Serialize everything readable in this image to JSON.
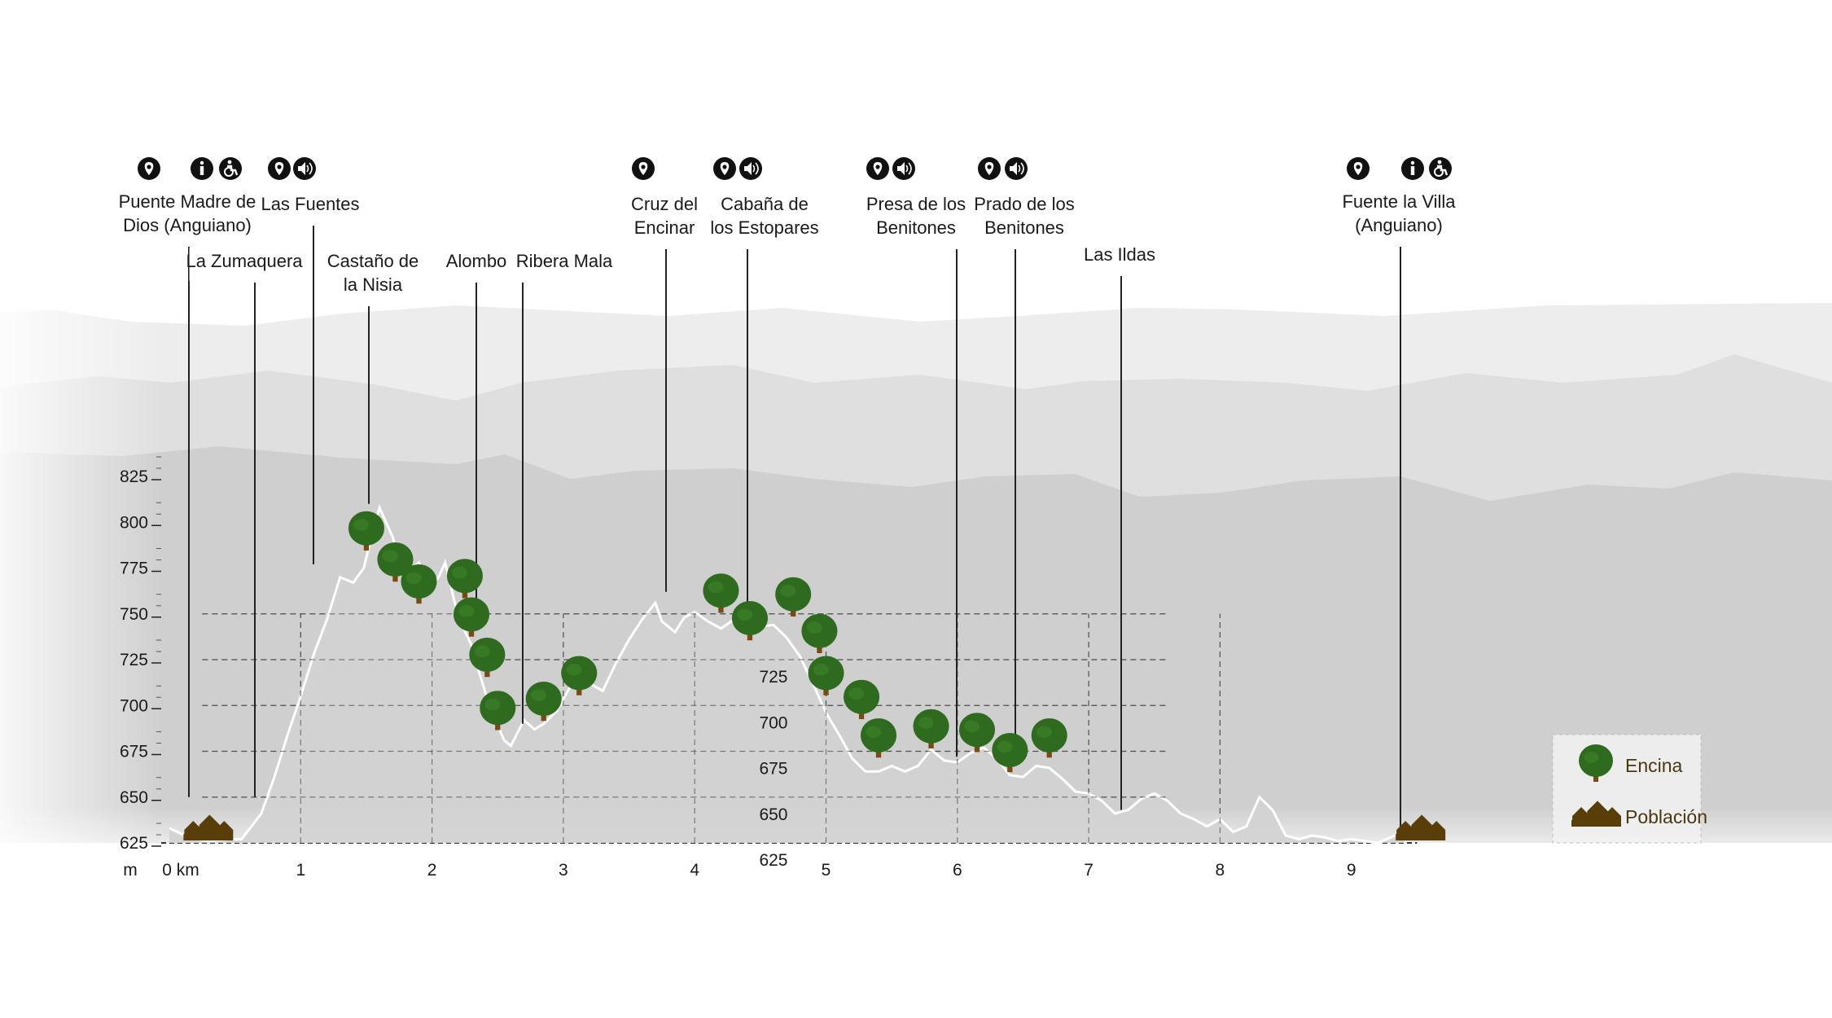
{
  "chart_data": {
    "type": "area",
    "title": "",
    "xlabel": "",
    "ylabel": "",
    "y_unit_label": "m",
    "x_start_label": "0 km",
    "xlim": [
      0,
      9.5
    ],
    "ylim": [
      625,
      825
    ],
    "y_ticks": [
      "625",
      "650",
      "675",
      "700",
      "725",
      "750",
      "775",
      "800",
      "825"
    ],
    "x_ticks": [
      "0 km",
      "1",
      "2",
      "3",
      "4",
      "5",
      "6",
      "7",
      "8",
      "9"
    ],
    "inner_labels": [
      "725",
      "700",
      "675",
      "650",
      "625"
    ],
    "grid": "dashed",
    "profile": {
      "x": [
        0,
        0.15,
        0.3,
        0.45,
        0.55,
        0.7,
        0.8,
        0.9,
        1.0,
        1.1,
        1.2,
        1.3,
        1.4,
        1.48,
        1.55,
        1.6,
        1.7,
        1.78,
        1.85,
        1.9,
        1.95,
        2.0,
        2.05,
        2.1,
        2.2,
        2.3,
        2.35,
        2.45,
        2.55,
        2.6,
        2.7,
        2.78,
        2.85,
        2.95,
        3.05,
        3.15,
        3.2,
        3.3,
        3.4,
        3.5,
        3.6,
        3.7,
        3.75,
        3.85,
        3.92,
        4.0,
        4.1,
        4.2,
        4.3,
        4.4,
        4.5,
        4.6,
        4.7,
        4.8,
        4.9,
        5.0,
        5.1,
        5.2,
        5.3,
        5.4,
        5.5,
        5.6,
        5.7,
        5.8,
        5.9,
        6.0,
        6.1,
        6.2,
        6.3,
        6.4,
        6.5,
        6.6,
        6.7,
        6.8,
        6.9,
        7.0,
        7.1,
        7.2,
        7.3,
        7.4,
        7.5,
        7.6,
        7.7,
        7.8,
        7.9,
        8.0,
        8.1,
        8.2,
        8.3,
        8.4,
        8.5,
        8.6,
        8.7,
        8.8,
        8.9,
        9.0,
        9.2,
        9.4
      ],
      "y": [
        633,
        628,
        626,
        627,
        627,
        641,
        661,
        684,
        705,
        728,
        747,
        770,
        767,
        775,
        795,
        808,
        792,
        772,
        775,
        778,
        770,
        766,
        770,
        778,
        748,
        733,
        720,
        697,
        681,
        678,
        692,
        687,
        690,
        697,
        710,
        719,
        712,
        708,
        723,
        736,
        747,
        756,
        746,
        740,
        748,
        751,
        746,
        742,
        747,
        747,
        743,
        744,
        737,
        727,
        712,
        696,
        684,
        671,
        664,
        664,
        667,
        664,
        667,
        676,
        670,
        669,
        674,
        677,
        671,
        662,
        661,
        667,
        666,
        660,
        653,
        652,
        648,
        641,
        643,
        649,
        652,
        648,
        641,
        638,
        634,
        638,
        631,
        634,
        650,
        643,
        629,
        627,
        629,
        628,
        626,
        627,
        625,
        631
      ]
    },
    "annotations": [
      {
        "label": "Puente Madre de\nDios (Anguiano)",
        "x": 0.03,
        "y": 650,
        "icons": [
          "pin-icon"
        ],
        "tag_icons": [
          "info-icon",
          "accessibility-icon"
        ]
      },
      {
        "label": "La Zumaquera",
        "x": 0.55,
        "y": 650,
        "icons": []
      },
      {
        "label": "Las Fuentes",
        "x": 1.0,
        "y": 777,
        "icons": [
          "pin-icon",
          "audio-icon"
        ]
      },
      {
        "label": "Castaño de\nla Nisia",
        "x": 1.58,
        "y": 810,
        "icons": []
      },
      {
        "label": "Alombo",
        "x": 2.4,
        "y": 756,
        "icons": []
      },
      {
        "label": "Ribera Mala",
        "x": 2.75,
        "y": 690,
        "icons": []
      },
      {
        "label": "Cruz del\nEncinar",
        "x": 3.75,
        "y": 762,
        "icons": [
          "pin-icon"
        ]
      },
      {
        "label": "Cabaña de\nlos Estopares",
        "x": 4.5,
        "y": 756,
        "icons": [
          "pin-icon",
          "audio-icon"
        ]
      },
      {
        "label": "Presa de los\nBenitones",
        "x": 6.05,
        "y": 672,
        "icons": [
          "pin-icon",
          "audio-icon"
        ]
      },
      {
        "label": "Prado de los\nBenitones",
        "x": 6.5,
        "y": 678,
        "icons": [
          "pin-icon",
          "audio-icon"
        ]
      },
      {
        "label": "Las Ildas",
        "x": 7.3,
        "y": 643,
        "icons": []
      },
      {
        "label": "Fuente la Villa\n(Anguiano)",
        "x": 9.45,
        "y": 634,
        "icons": [
          "pin-icon"
        ],
        "tag_icons": [
          "info-icon",
          "accessibility-icon"
        ]
      }
    ],
    "trees": [
      {
        "x": 1.5,
        "y": 789
      },
      {
        "x": 1.72,
        "y": 772
      },
      {
        "x": 1.9,
        "y": 760
      },
      {
        "x": 2.25,
        "y": 763
      },
      {
        "x": 2.3,
        "y": 742
      },
      {
        "x": 2.42,
        "y": 720
      },
      {
        "x": 2.5,
        "y": 691
      },
      {
        "x": 2.85,
        "y": 696
      },
      {
        "x": 3.12,
        "y": 710
      },
      {
        "x": 4.2,
        "y": 755
      },
      {
        "x": 4.42,
        "y": 740
      },
      {
        "x": 4.75,
        "y": 753
      },
      {
        "x": 4.95,
        "y": 733
      },
      {
        "x": 5.0,
        "y": 710
      },
      {
        "x": 5.27,
        "y": 697
      },
      {
        "x": 5.4,
        "y": 676
      },
      {
        "x": 5.8,
        "y": 681
      },
      {
        "x": 6.15,
        "y": 679
      },
      {
        "x": 6.4,
        "y": 668
      },
      {
        "x": 6.7,
        "y": 676
      }
    ],
    "settlements": [
      {
        "x": 0.12
      },
      {
        "x": 9.35
      }
    ],
    "legend": {
      "placement": "bottom-right",
      "items": [
        {
          "label": "Encina",
          "color": "#2e6b1f",
          "icon": "tree-icon"
        },
        {
          "label": "Población",
          "color": "#5a3e0a",
          "icon": "village-icon"
        }
      ]
    },
    "colors": {
      "profile_fill": "#d2d2d2",
      "profile_outline": "#ffffff",
      "tree": "#2e6b1f",
      "trunk": "#7a4a12",
      "village": "#5a3e0a",
      "icon": "#111111"
    }
  }
}
